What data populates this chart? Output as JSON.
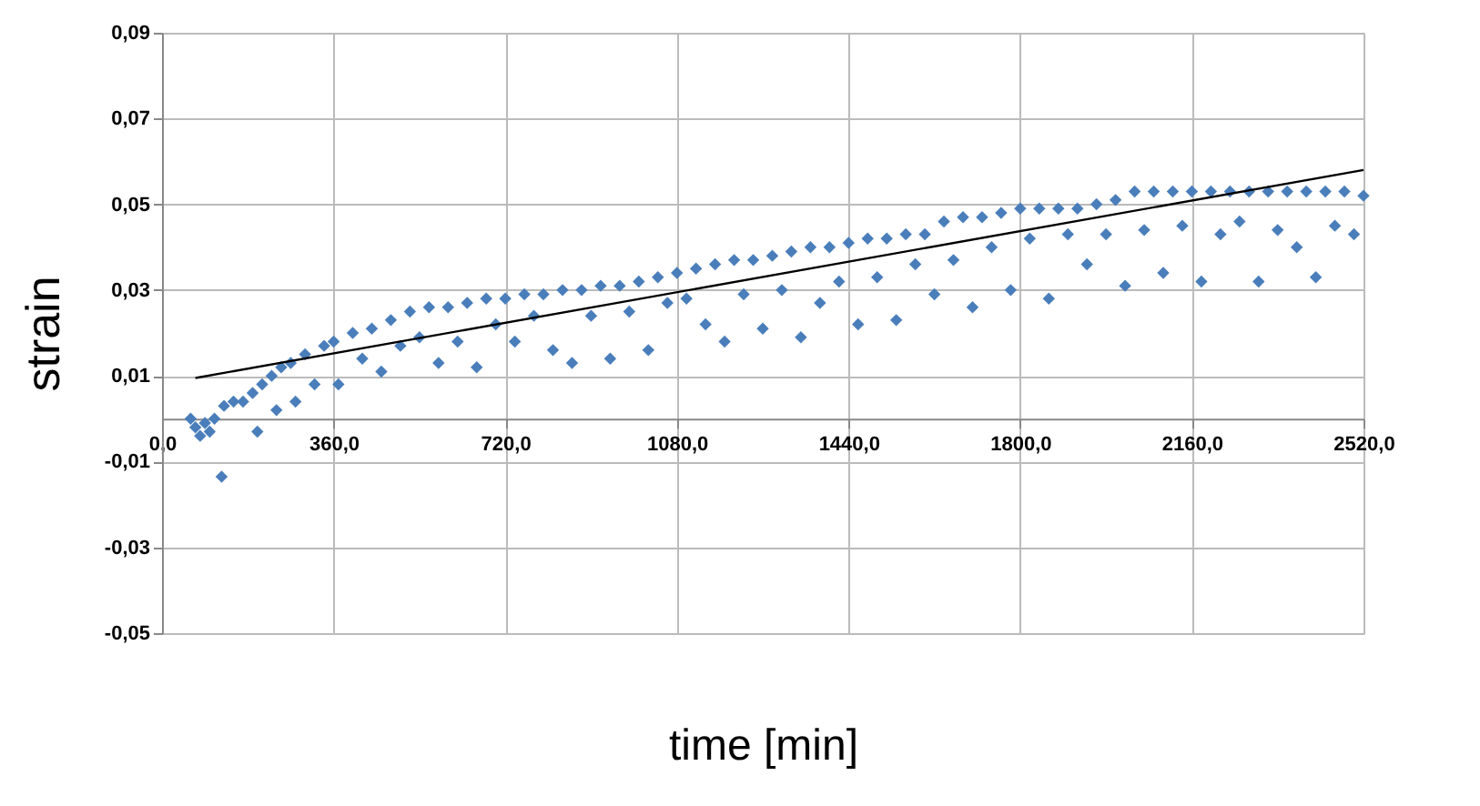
{
  "chart_data": {
    "type": "scatter",
    "xlabel": "time [min]",
    "ylabel": "strain",
    "grid": true,
    "legend": false,
    "xlim": [
      0,
      2520
    ],
    "ylim": [
      -0.05,
      0.09
    ],
    "xticks": [
      {
        "value": 0,
        "label": "0,0"
      },
      {
        "value": 360,
        "label": "360,0"
      },
      {
        "value": 720,
        "label": "720,0"
      },
      {
        "value": 1080,
        "label": "1080,0"
      },
      {
        "value": 1440,
        "label": "1440,0"
      },
      {
        "value": 1800,
        "label": "1800,0"
      },
      {
        "value": 2160,
        "label": "2160,0"
      },
      {
        "value": 2520,
        "label": "2520,0"
      }
    ],
    "yticks": [
      {
        "value": -0.05,
        "label": "-0,05"
      },
      {
        "value": -0.03,
        "label": "-0,03"
      },
      {
        "value": -0.01,
        "label": "-0,01"
      },
      {
        "value": 0.01,
        "label": "0,01"
      },
      {
        "value": 0.03,
        "label": "0,03"
      },
      {
        "value": 0.05,
        "label": "0,05"
      },
      {
        "value": 0.07,
        "label": "0,07"
      },
      {
        "value": 0.09,
        "label": "0,09"
      }
    ],
    "series": [
      {
        "marker": "diamond",
        "color": "#4a7ebb",
        "x": [
          60,
          70,
          80,
          90,
          100,
          110,
          125,
          130,
          150,
          170,
          190,
          200,
          210,
          230,
          240,
          250,
          270,
          280,
          300,
          320,
          340,
          360,
          370,
          400,
          420,
          440,
          460,
          480,
          500,
          520,
          540,
          560,
          580,
          600,
          620,
          640,
          660,
          680,
          700,
          720,
          740,
          760,
          780,
          800,
          820,
          840,
          860,
          880,
          900,
          920,
          940,
          960,
          980,
          1000,
          1020,
          1040,
          1060,
          1080,
          1100,
          1120,
          1140,
          1160,
          1180,
          1200,
          1220,
          1240,
          1260,
          1280,
          1300,
          1320,
          1340,
          1360,
          1380,
          1400,
          1420,
          1440,
          1460,
          1480,
          1500,
          1520,
          1540,
          1560,
          1580,
          1600,
          1620,
          1640,
          1660,
          1680,
          1700,
          1720,
          1740,
          1760,
          1780,
          1800,
          1820,
          1840,
          1860,
          1880,
          1900,
          1920,
          1940,
          1960,
          1980,
          2000,
          2020,
          2040,
          2060,
          2080,
          2100,
          2120,
          2140,
          2160,
          2180,
          2200,
          2220,
          2240,
          2260,
          2280,
          2300,
          2320,
          2340,
          2360,
          2380,
          2400,
          2420,
          2440,
          2460,
          2480,
          2500,
          2520
        ],
        "values": [
          0.0,
          -0.002,
          -0.004,
          -0.001,
          -0.003,
          0.0,
          -0.0135,
          0.003,
          0.004,
          0.004,
          0.006,
          -0.003,
          0.008,
          0.01,
          0.002,
          0.012,
          0.013,
          0.004,
          0.015,
          0.008,
          0.017,
          0.018,
          0.008,
          0.02,
          0.014,
          0.021,
          0.011,
          0.023,
          0.017,
          0.025,
          0.019,
          0.026,
          0.013,
          0.026,
          0.018,
          0.027,
          0.012,
          0.028,
          0.022,
          0.028,
          0.018,
          0.029,
          0.024,
          0.029,
          0.016,
          0.03,
          0.013,
          0.03,
          0.024,
          0.031,
          0.014,
          0.031,
          0.025,
          0.032,
          0.016,
          0.033,
          0.027,
          0.034,
          0.028,
          0.035,
          0.022,
          0.036,
          0.018,
          0.037,
          0.029,
          0.037,
          0.021,
          0.038,
          0.03,
          0.039,
          0.019,
          0.04,
          0.027,
          0.04,
          0.032,
          0.041,
          0.022,
          0.042,
          0.033,
          0.042,
          0.023,
          0.043,
          0.036,
          0.043,
          0.029,
          0.046,
          0.037,
          0.047,
          0.026,
          0.047,
          0.04,
          0.048,
          0.03,
          0.049,
          0.042,
          0.049,
          0.028,
          0.049,
          0.043,
          0.049,
          0.036,
          0.05,
          0.043,
          0.051,
          0.031,
          0.053,
          0.044,
          0.053,
          0.034,
          0.053,
          0.045,
          0.053,
          0.032,
          0.053,
          0.043,
          0.053,
          0.046,
          0.053,
          0.032,
          0.053,
          0.044,
          0.053,
          0.04,
          0.053,
          0.033,
          0.053,
          0.045,
          0.053,
          0.043,
          0.052
        ]
      },
      {
        "type": "line",
        "color": "#000000",
        "x": [
          70,
          2520
        ],
        "values": [
          0.0095,
          0.058
        ]
      }
    ]
  }
}
